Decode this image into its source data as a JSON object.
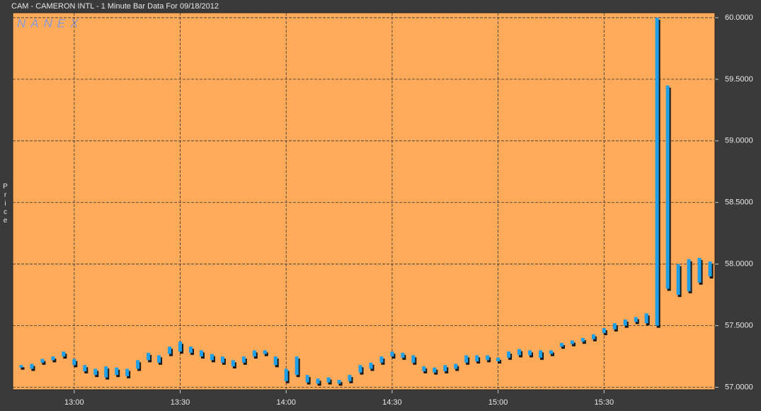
{
  "chart_data": {
    "type": "range-bar",
    "title": "CAM - CAMERON INTL - 1 Minute Bar Data For 09/18/2012",
    "watermark": "NANEX",
    "y_label": "Price",
    "color": "#1e9fe6",
    "grid": true,
    "xlim": [
      762.6,
      961.4
    ],
    "xticks": [
      {
        "value": 780,
        "label": "13:00"
      },
      {
        "value": 810,
        "label": "13:30"
      },
      {
        "value": 840,
        "label": "14:00"
      },
      {
        "value": 870,
        "label": "14:30"
      },
      {
        "value": 900,
        "label": "15:00"
      },
      {
        "value": 930,
        "label": "15:30"
      }
    ],
    "ylim": [
      56.98,
      60.04
    ],
    "yticks": [
      {
        "value": 57,
        "label": "57.0000"
      },
      {
        "value": 57.5,
        "label": "57.5000"
      },
      {
        "value": 58,
        "label": "58.0000"
      },
      {
        "value": 58.5,
        "label": "58.5000"
      },
      {
        "value": 59,
        "label": "59.0000"
      },
      {
        "value": 59.5,
        "label": "59.5000"
      },
      {
        "value": 60,
        "label": "60.0000"
      }
    ],
    "x": [
      765,
      768,
      771,
      774,
      777,
      780,
      783,
      786,
      789,
      792,
      795,
      798,
      801,
      804,
      807,
      810,
      813,
      816,
      819,
      822,
      825,
      828,
      831,
      834,
      837,
      840,
      843,
      846,
      849,
      852,
      855,
      858,
      861,
      864,
      867,
      870,
      873,
      876,
      879,
      882,
      885,
      888,
      891,
      894,
      897,
      900,
      903,
      906,
      909,
      912,
      915,
      918,
      921,
      924,
      927,
      930,
      933,
      936,
      939,
      942,
      945,
      948,
      951,
      954,
      957,
      960
    ],
    "low": [
      57.16,
      57.15,
      57.2,
      57.22,
      57.25,
      57.18,
      57.13,
      57.1,
      57.08,
      57.1,
      57.09,
      57.15,
      57.22,
      57.2,
      57.27,
      57.29,
      57.28,
      57.25,
      57.22,
      57.2,
      57.17,
      57.2,
      57.25,
      57.27,
      57.18,
      57.05,
      57.1,
      57.04,
      57.03,
      57.04,
      57.03,
      57.05,
      57.12,
      57.15,
      57.2,
      57.25,
      57.24,
      57.2,
      57.13,
      57.12,
      57.13,
      57.15,
      57.2,
      57.21,
      57.22,
      57.21,
      57.24,
      57.26,
      57.26,
      57.24,
      57.27,
      57.33,
      57.35,
      57.37,
      57.39,
      57.44,
      57.47,
      57.5,
      57.53,
      57.52,
      57.5,
      57.8,
      57.75,
      57.78,
      57.85,
      57.9
    ],
    "high": [
      57.18,
      57.19,
      57.23,
      57.25,
      57.29,
      57.23,
      57.18,
      57.15,
      57.17,
      57.16,
      57.15,
      57.22,
      57.28,
      57.26,
      57.33,
      57.37,
      57.33,
      57.3,
      57.27,
      57.25,
      57.22,
      57.25,
      57.3,
      57.3,
      57.25,
      57.15,
      57.25,
      57.1,
      57.07,
      57.08,
      57.06,
      57.1,
      57.18,
      57.2,
      57.25,
      57.29,
      57.28,
      57.26,
      57.17,
      57.16,
      57.18,
      57.19,
      57.26,
      57.26,
      57.26,
      57.24,
      57.29,
      57.31,
      57.3,
      57.3,
      57.3,
      57.36,
      57.38,
      57.4,
      57.43,
      57.48,
      57.52,
      57.55,
      57.57,
      57.6,
      60.0,
      59.45,
      58.0,
      58.04,
      58.05,
      58.02
    ]
  }
}
